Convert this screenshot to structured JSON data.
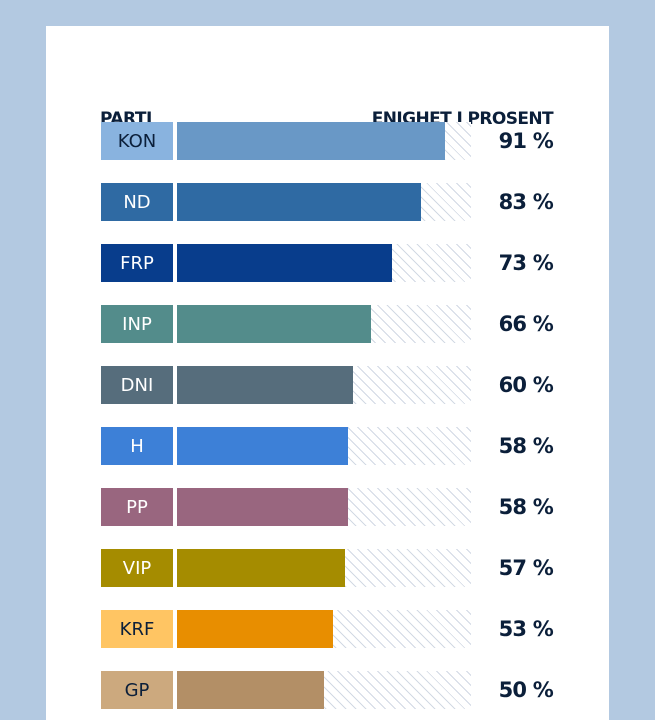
{
  "chart_data": {
    "type": "bar",
    "orientation": "horizontal",
    "header_left": "PARTI",
    "header_right": "ENIGHET I PROSENT",
    "categories": [
      "KON",
      "ND",
      "FRP",
      "INP",
      "DNI",
      "H",
      "PP",
      "VIP",
      "KRF",
      "GP"
    ],
    "values": [
      91,
      83,
      73,
      66,
      60,
      58,
      58,
      57,
      53,
      50
    ],
    "value_labels": [
      "91 %",
      "83 %",
      "73 %",
      "66 %",
      "60 %",
      "58 %",
      "58 %",
      "57 %",
      "53 %",
      "50 %"
    ],
    "xlim": [
      0,
      100
    ],
    "bar_colors": [
      "#6998c6",
      "#2f6aa3",
      "#083d8c",
      "#538c8b",
      "#566d7c",
      "#3d80d7",
      "#99667f",
      "#a58c00",
      "#e88e00",
      "#b38f66"
    ],
    "label_colors": [
      "#89b3df",
      "#2f6aa3",
      "#083d8c",
      "#538c8b",
      "#566d7c",
      "#3d80d7",
      "#99667f",
      "#a58c00",
      "#ffc563",
      "#cca97e"
    ],
    "label_text_colors": [
      "#0b1f3a",
      "#ffffff",
      "#ffffff",
      "#ffffff",
      "#ffffff",
      "#ffffff",
      "#ffffff",
      "#ffffff",
      "#0b1f3a",
      "#0b1f3a"
    ]
  }
}
